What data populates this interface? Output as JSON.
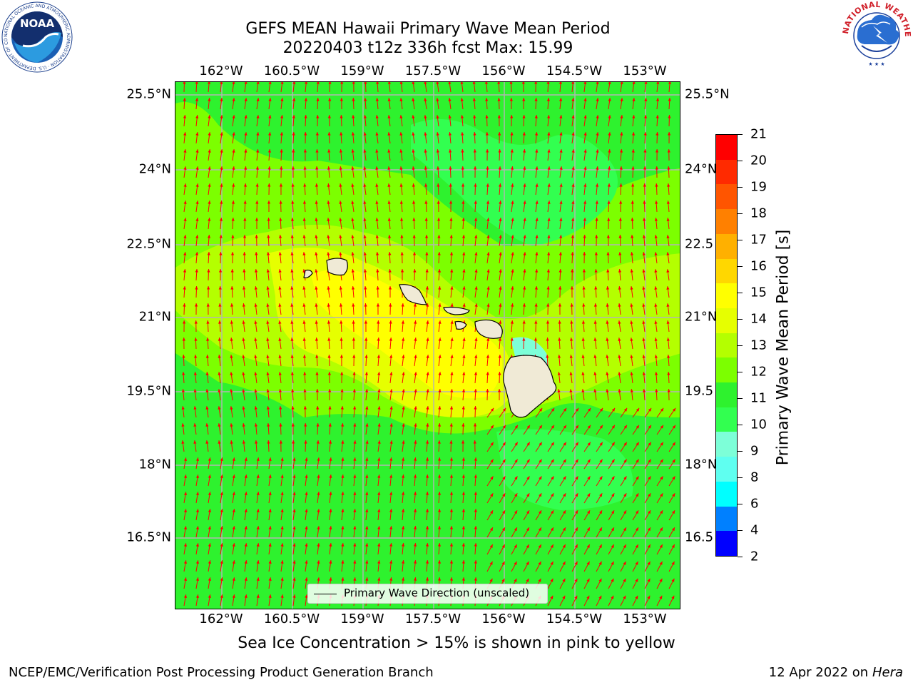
{
  "title": {
    "line1": "GEFS MEAN Hawaii Primary Wave Mean Period",
    "line2": "20220403 t12z 336h fcst   Max: 15.99"
  },
  "axes": {
    "lon_labels": [
      "162°W",
      "160.5°W",
      "159°W",
      "157.5°W",
      "156°W",
      "154.5°W",
      "153°W"
    ],
    "lat_labels_left": [
      "25.5°N",
      "24°N",
      "22.5°N",
      "21°N",
      "19.5°N",
      "18°N",
      "16.5°N"
    ],
    "lat_labels_right": [
      "25.5°N",
      "24°N",
      "22.5",
      "21°N",
      "19.5",
      "18°N",
      "16.5"
    ]
  },
  "map_legend": {
    "label": "Primary Wave Direction (unscaled)"
  },
  "colorbar": {
    "label": "Primary Wave Mean Period [s]",
    "ticks": [
      "21",
      "20",
      "19",
      "18",
      "17",
      "16",
      "15",
      "14",
      "13",
      "12",
      "11",
      "10",
      "9",
      "8",
      "6",
      "4",
      "2"
    ],
    "colors": [
      "#ff0000",
      "#ff2a00",
      "#ff5500",
      "#ff8000",
      "#ffb000",
      "#ffd700",
      "#ffff00",
      "#e6ff00",
      "#b4ff00",
      "#7cff00",
      "#2ef22e",
      "#32ff50",
      "#7dffd8",
      "#5ffff0",
      "#00ffff",
      "#0080ff",
      "#0000ff"
    ]
  },
  "subtitle": "Sea Ice Concentration > 15% is shown in pink to yellow",
  "footer": {
    "left": "NCEP/EMC/Verification Post Processing Product Generation Branch",
    "date": "12 Apr 2022 on ",
    "host": "Hera"
  },
  "logos": {
    "noaa_text": "NOAA",
    "noaa_ring": "NATIONAL OCEANIC AND ATMOSPHERIC ADMINISTRATION · U.S. DEPARTMENT OF COMMERCE ·",
    "nws_ring": "NATIONAL WEATHER SERVICE"
  },
  "field_colors": {
    "ocean_low": "#2ef22e",
    "ocean_mid": "#7cff00",
    "ocean_high": "#b4ff00",
    "ocean_peak": "#e6ff00",
    "near_island": "#ffff00",
    "shadow": "#32ff50",
    "lee": "#7dffd8",
    "land": "#f0ead6",
    "arrow": "#ff0000"
  }
}
